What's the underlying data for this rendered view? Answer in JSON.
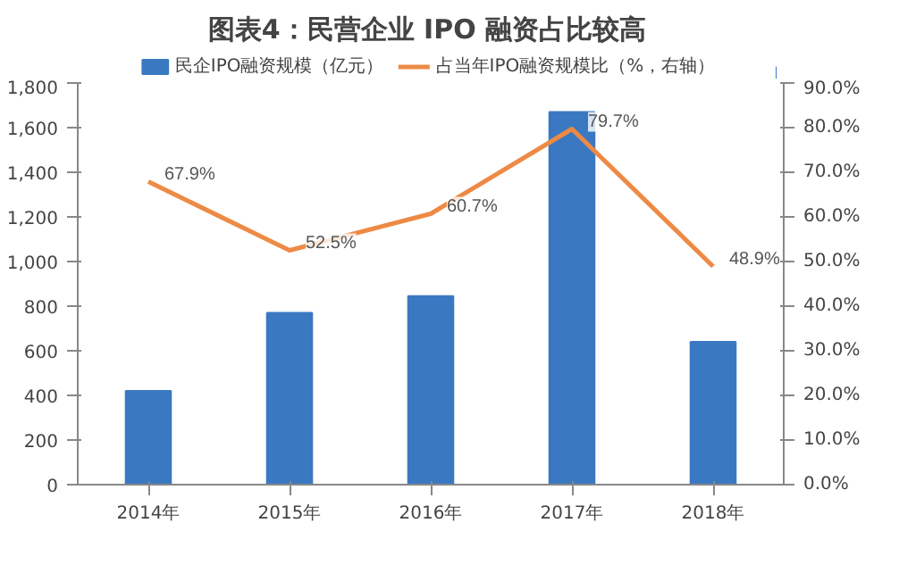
{
  "chart_data": {
    "type": "bar",
    "title": "图表4：民营企业 IPO 融资占比较高",
    "categories": [
      "2014年",
      "2015年",
      "2016年",
      "2017年",
      "2018年"
    ],
    "series": [
      {
        "name": "民企IPO融资规模（亿元）",
        "color": "#3a78c2",
        "values": [
          420,
          770,
          845,
          1670,
          640
        ]
      },
      {
        "name": "占当年IPO融资规模比（%，右轴）",
        "type": "line",
        "axis": "y2",
        "color": "#ed8a45",
        "values": [
          67.9,
          52.5,
          60.7,
          79.7,
          48.9
        ],
        "value_labels": [
          "67.9%",
          "52.5%",
          "60.7%",
          "79.7%",
          "48.9%"
        ]
      }
    ],
    "ylim": [
      0,
      1800
    ],
    "yticks": [
      0,
      200,
      400,
      600,
      800,
      {
        "value": 1000,
        "label": "1,000"
      },
      {
        "value": 1200,
        "label": "1,200"
      },
      {
        "value": 1400,
        "label": "1,400"
      },
      {
        "value": 1600,
        "label": "1,600"
      },
      {
        "value": 1800,
        "label": "1,800"
      }
    ],
    "y2lim": [
      0,
      90
    ],
    "y2ticks": [
      {
        "value": 0,
        "label": "0.0%"
      },
      {
        "value": 10,
        "label": "10.0%"
      },
      {
        "value": 20,
        "label": "20.0%"
      },
      {
        "value": 30,
        "label": "30.0%"
      },
      {
        "value": 40,
        "label": "40.0%"
      },
      {
        "value": 50,
        "label": "50.0%"
      },
      {
        "value": 60,
        "label": "60.0%"
      },
      {
        "value": 70,
        "label": "70.0%"
      },
      {
        "value": 80,
        "label": "80.0%"
      },
      {
        "value": 90,
        "label": "90.0%"
      }
    ],
    "grid": false,
    "legend": "top"
  }
}
